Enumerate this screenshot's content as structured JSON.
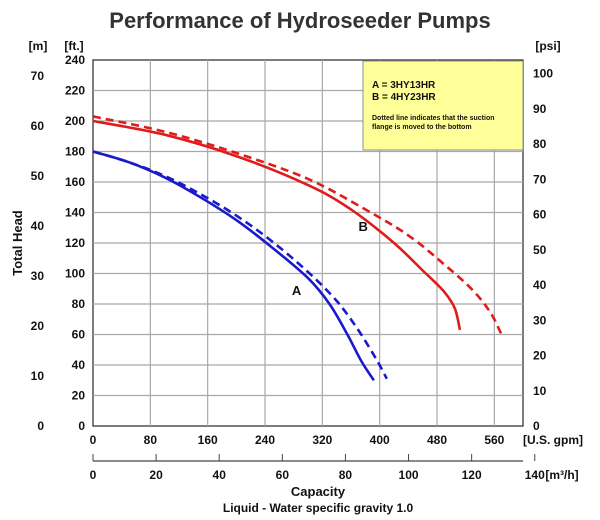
{
  "chart_data": {
    "type": "line",
    "title": "Performance of Hydroseeder Pumps",
    "xlabel": "Capacity",
    "subtitle": "Liquid - Water specific gravity 1.0",
    "ylabel": "Total Head",
    "x_unit_primary": "[U.S. gpm]",
    "x_unit_secondary": "[m³/h]",
    "y_unit_ft": "[ft.]",
    "y_unit_m": "[m]",
    "y_unit_psi": "[psi]",
    "xlim": [
      0,
      600
    ],
    "ylim": [
      0,
      240
    ],
    "x_ticks_gpm": [
      "0",
      "80",
      "160",
      "240",
      "320",
      "400",
      "480",
      "560"
    ],
    "x_ticks_m3h": [
      "0",
      "20",
      "40",
      "60",
      "80",
      "100",
      "120",
      "140"
    ],
    "y_ticks_ft": [
      "0",
      "20",
      "40",
      "60",
      "80",
      "100",
      "120",
      "140",
      "160",
      "180",
      "200",
      "220",
      "240"
    ],
    "y_ticks_m": [
      "0",
      "10",
      "20",
      "30",
      "40",
      "50",
      "60",
      "70"
    ],
    "y_ticks_psi": [
      "0",
      "10",
      "20",
      "30",
      "40",
      "50",
      "60",
      "70",
      "80",
      "90",
      "100"
    ],
    "grid": true,
    "legend": {
      "lines": [
        "A = 3HY13HR",
        "B = 4HY23HR"
      ],
      "note_lines": [
        "Dotted line indicates that the suction",
        "flange is moved to the bottom"
      ],
      "background": "#ffff99",
      "position": "top-right"
    },
    "curve_labels": [
      {
        "text": "A",
        "x": 284,
        "y": 86
      },
      {
        "text": "B",
        "x": 377,
        "y": 128
      }
    ],
    "series": [
      {
        "label": "A",
        "style": "solid",
        "color": "#1a1acc",
        "x": [
          0,
          50,
          100,
          150,
          200,
          250,
          300,
          330,
          355,
          375,
          392
        ],
        "y": [
          180,
          173,
          163,
          150,
          135,
          117,
          97,
          80,
          60,
          42,
          30
        ]
      },
      {
        "label": "A",
        "style": "dashed",
        "color": "#1a1acc",
        "x": [
          0,
          50,
          100,
          150,
          200,
          250,
          300,
          340,
          370,
          395,
          410
        ],
        "y": [
          180,
          173,
          164,
          152,
          138,
          121,
          101,
          82,
          63,
          44,
          31
        ]
      },
      {
        "label": "B",
        "style": "solid",
        "color": "#e01b1b",
        "x": [
          0,
          100,
          200,
          300,
          360,
          420,
          460,
          490,
          505,
          512
        ],
        "y": [
          200,
          191,
          177,
          158,
          142,
          120,
          102,
          88,
          77,
          63
        ]
      },
      {
        "label": "B",
        "style": "dashed",
        "color": "#e01b1b",
        "x": [
          0,
          100,
          200,
          300,
          380,
          440,
          490,
          530,
          555,
          570
        ],
        "y": [
          203,
          193,
          179,
          162,
          142,
          125,
          106,
          89,
          74,
          60
        ]
      }
    ]
  }
}
